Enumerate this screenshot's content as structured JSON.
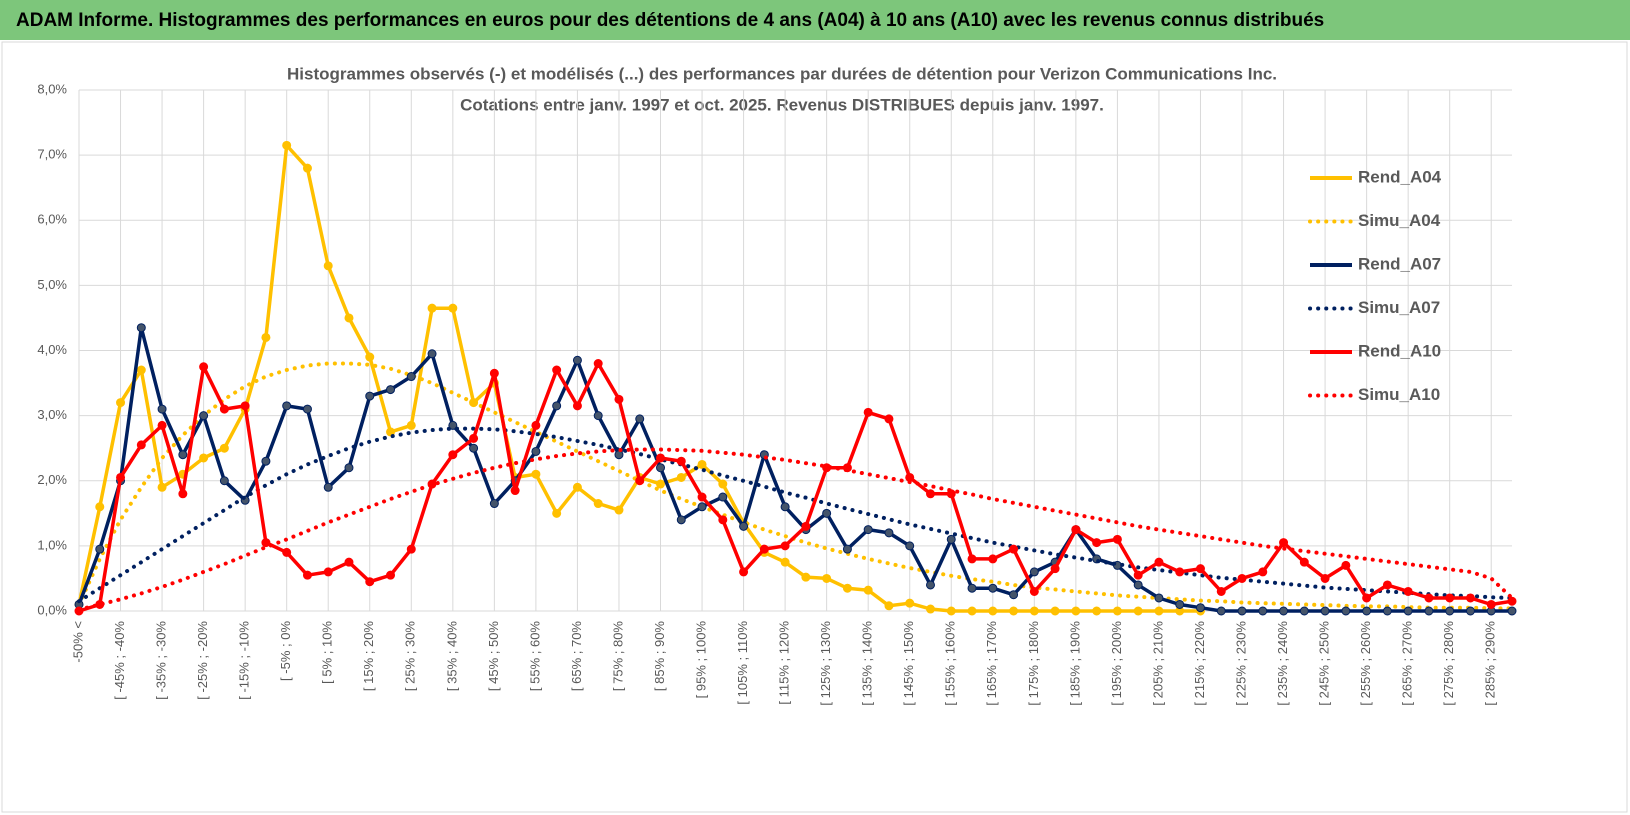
{
  "header": {
    "title": "ADAM Informe. Histogrammes des performances en euros pour des détentions de 4 ans (A04) à 10 ans (A10) avec les revenus connus distribués"
  },
  "chart_data": {
    "type": "line",
    "title": "Histogrammes observés (-) et modélisés (...) des performances par durées de détention pour Verizon Communications Inc.",
    "subtitle": "Cotations entre janv. 1997 et oct. 2025.  Revenus DISTRIBUES depuis janv. 1997.",
    "categories": [
      "-50% <",
      null,
      "[ -45% ; -40%",
      null,
      "[ -35% ; -30%",
      null,
      "[ -25% ; -20%",
      null,
      "[ -15% ; -10%",
      null,
      "[ -5% ; 0%",
      null,
      "[ 5% ; 10%",
      null,
      "[ 15% ; 20%",
      null,
      "[ 25% ; 30%",
      null,
      "[ 35% ; 40%",
      null,
      "[ 45% ; 50%",
      null,
      "[ 55% ; 60%",
      null,
      "[ 65% ; 70%",
      null,
      "[ 75% ; 80%",
      null,
      "[ 85% ; 90%",
      null,
      "[ 95% ; 100%",
      null,
      "[ 105% ; 110%",
      null,
      "[ 115% ; 120%",
      null,
      "[ 125% ; 130%",
      null,
      "[ 135% ; 140%",
      null,
      "[ 145% ; 150%",
      null,
      "[ 155% ; 160%",
      null,
      "[ 165% ; 170%",
      null,
      "[ 175% ; 180%",
      null,
      "[ 185% ; 190%",
      null,
      "[ 195% ; 200%",
      null,
      "[ 205% ; 210%",
      null,
      "[ 215% ; 220%",
      null,
      "[ 225% ; 230%",
      null,
      "[ 235% ; 240%",
      null,
      "[ 245% ; 250%",
      null,
      "[ 255% ; 260%",
      null,
      "[ 265% ; 270%",
      null,
      "[ 275% ; 280%",
      null,
      "[ 285% ; 290%",
      null
    ],
    "ylim": [
      0,
      8
    ],
    "yticks": [
      {
        "value": 0,
        "label": "0,0%"
      },
      {
        "value": 1,
        "label": "1,0%"
      },
      {
        "value": 2,
        "label": "2,0%"
      },
      {
        "value": 3,
        "label": "3,0%"
      },
      {
        "value": 4,
        "label": "4,0%"
      },
      {
        "value": 5,
        "label": "5,0%"
      },
      {
        "value": 6,
        "label": "6,0%"
      },
      {
        "value": 7,
        "label": "7,0%"
      },
      {
        "value": 8,
        "label": "8,0%"
      }
    ],
    "grid": true,
    "legend": "right",
    "series": [
      {
        "name": "Rend_A04",
        "color": "#FFC000",
        "style": "solid",
        "markers": true,
        "values": [
          0.1,
          1.6,
          3.2,
          3.7,
          1.9,
          2.1,
          2.35,
          2.5,
          3.1,
          4.2,
          7.15,
          6.8,
          5.3,
          4.5,
          3.9,
          2.75,
          2.85,
          4.65,
          4.65,
          3.2,
          3.5,
          2.05,
          2.1,
          1.5,
          1.9,
          1.65,
          1.55,
          2.05,
          1.95,
          2.05,
          2.25,
          1.95,
          1.35,
          0.9,
          0.75,
          0.52,
          0.5,
          0.35,
          0.32,
          0.08,
          0.12,
          0.03,
          0,
          0,
          0,
          0,
          0,
          0,
          0,
          0,
          0,
          0,
          0,
          0,
          0,
          null,
          null,
          null,
          null,
          null,
          null,
          null,
          null,
          null,
          null,
          null,
          null,
          null,
          null,
          null
        ]
      },
      {
        "name": "Simu_A04",
        "color": "#FFC000",
        "style": "dotted",
        "markers": false,
        "values": [
          0.1,
          0.8,
          1.4,
          1.9,
          2.35,
          2.7,
          3.0,
          3.25,
          3.45,
          3.6,
          3.7,
          3.77,
          3.8,
          3.8,
          3.78,
          3.72,
          3.62,
          3.5,
          3.35,
          3.2,
          3.05,
          2.9,
          2.75,
          2.6,
          2.45,
          2.3,
          2.15,
          2.0,
          1.85,
          1.72,
          1.6,
          1.48,
          1.36,
          1.25,
          1.15,
          1.05,
          0.96,
          0.88,
          0.8,
          0.73,
          0.66,
          0.6,
          0.54,
          0.49,
          0.45,
          0.4,
          0.36,
          0.33,
          0.3,
          0.27,
          0.24,
          0.22,
          0.2,
          0.18,
          0.16,
          0.15,
          0.13,
          0.12,
          0.11,
          0.1,
          0.09,
          0.08,
          0.07,
          0.07,
          0.06,
          0.05,
          0.05,
          0.05,
          0.04,
          0.04
        ]
      },
      {
        "name": "Rend_A07",
        "color": "#002060",
        "style": "solid",
        "markers": true,
        "values": [
          0.1,
          0.95,
          2.0,
          4.35,
          3.1,
          2.4,
          3.0,
          2.0,
          1.7,
          2.3,
          3.15,
          3.1,
          1.9,
          2.2,
          3.3,
          3.4,
          3.6,
          3.95,
          2.85,
          2.5,
          1.65,
          2.0,
          2.45,
          3.15,
          3.85,
          3.0,
          2.4,
          2.95,
          2.2,
          1.4,
          1.6,
          1.75,
          1.3,
          2.4,
          1.6,
          1.25,
          1.5,
          0.95,
          1.25,
          1.2,
          1.0,
          0.4,
          1.1,
          0.35,
          0.35,
          0.25,
          0.6,
          0.75,
          1.25,
          0.8,
          0.7,
          0.4,
          0.2,
          0.1,
          0.05,
          0,
          0,
          0,
          0,
          0,
          0,
          0,
          0,
          0,
          0,
          0,
          0,
          0,
          0,
          0
        ]
      },
      {
        "name": "Simu_A07",
        "color": "#002060",
        "style": "dotted",
        "markers": false,
        "values": [
          0.15,
          0.35,
          0.55,
          0.75,
          0.95,
          1.15,
          1.35,
          1.55,
          1.75,
          1.93,
          2.1,
          2.25,
          2.38,
          2.5,
          2.6,
          2.68,
          2.74,
          2.78,
          2.8,
          2.8,
          2.79,
          2.76,
          2.72,
          2.67,
          2.61,
          2.55,
          2.48,
          2.41,
          2.33,
          2.25,
          2.17,
          2.08,
          2.0,
          1.91,
          1.82,
          1.74,
          1.65,
          1.57,
          1.49,
          1.41,
          1.33,
          1.26,
          1.19,
          1.12,
          1.05,
          0.99,
          0.93,
          0.87,
          0.82,
          0.77,
          0.72,
          0.67,
          0.63,
          0.59,
          0.55,
          0.51,
          0.48,
          0.45,
          0.42,
          0.39,
          0.36,
          0.34,
          0.32,
          0.3,
          0.28,
          0.26,
          0.24,
          0.23,
          0.21,
          0.2
        ]
      },
      {
        "name": "Rend_A10",
        "color": "#FF0000",
        "style": "solid",
        "markers": true,
        "values": [
          0,
          0.1,
          2.05,
          2.55,
          2.85,
          1.8,
          3.75,
          3.1,
          3.15,
          1.05,
          0.9,
          0.55,
          0.6,
          0.75,
          0.45,
          0.55,
          0.95,
          1.95,
          2.4,
          2.65,
          3.65,
          1.85,
          2.85,
          3.7,
          3.15,
          3.8,
          3.25,
          2.0,
          2.35,
          2.3,
          1.75,
          1.4,
          0.6,
          0.95,
          1.0,
          1.3,
          2.2,
          2.2,
          3.05,
          2.95,
          2.05,
          1.8,
          1.8,
          0.8,
          0.8,
          0.95,
          0.3,
          0.65,
          1.25,
          1.05,
          1.1,
          0.55,
          0.75,
          0.6,
          0.65,
          0.3,
          0.5,
          0.6,
          1.05,
          0.75,
          0.5,
          0.7,
          0.2,
          0.4,
          0.3,
          0.2,
          0.2,
          0.2,
          0.1,
          0.15
        ]
      },
      {
        "name": "Simu_A10",
        "color": "#FF0000",
        "style": "dotted",
        "markers": false,
        "values": [
          0.02,
          0.1,
          0.18,
          0.27,
          0.37,
          0.48,
          0.6,
          0.72,
          0.85,
          0.98,
          1.1,
          1.23,
          1.36,
          1.48,
          1.6,
          1.72,
          1.83,
          1.94,
          2.03,
          2.12,
          2.2,
          2.27,
          2.33,
          2.38,
          2.42,
          2.45,
          2.47,
          2.48,
          2.48,
          2.47,
          2.46,
          2.43,
          2.4,
          2.36,
          2.32,
          2.27,
          2.22,
          2.16,
          2.1,
          2.04,
          1.98,
          1.92,
          1.85,
          1.79,
          1.72,
          1.66,
          1.6,
          1.54,
          1.48,
          1.42,
          1.36,
          1.3,
          1.25,
          1.2,
          1.15,
          1.1,
          1.05,
          1.0,
          0.96,
          0.92,
          0.88,
          0.84,
          0.8,
          0.76,
          0.72,
          0.68,
          0.64,
          0.6,
          0.5,
          0.2
        ]
      }
    ]
  }
}
